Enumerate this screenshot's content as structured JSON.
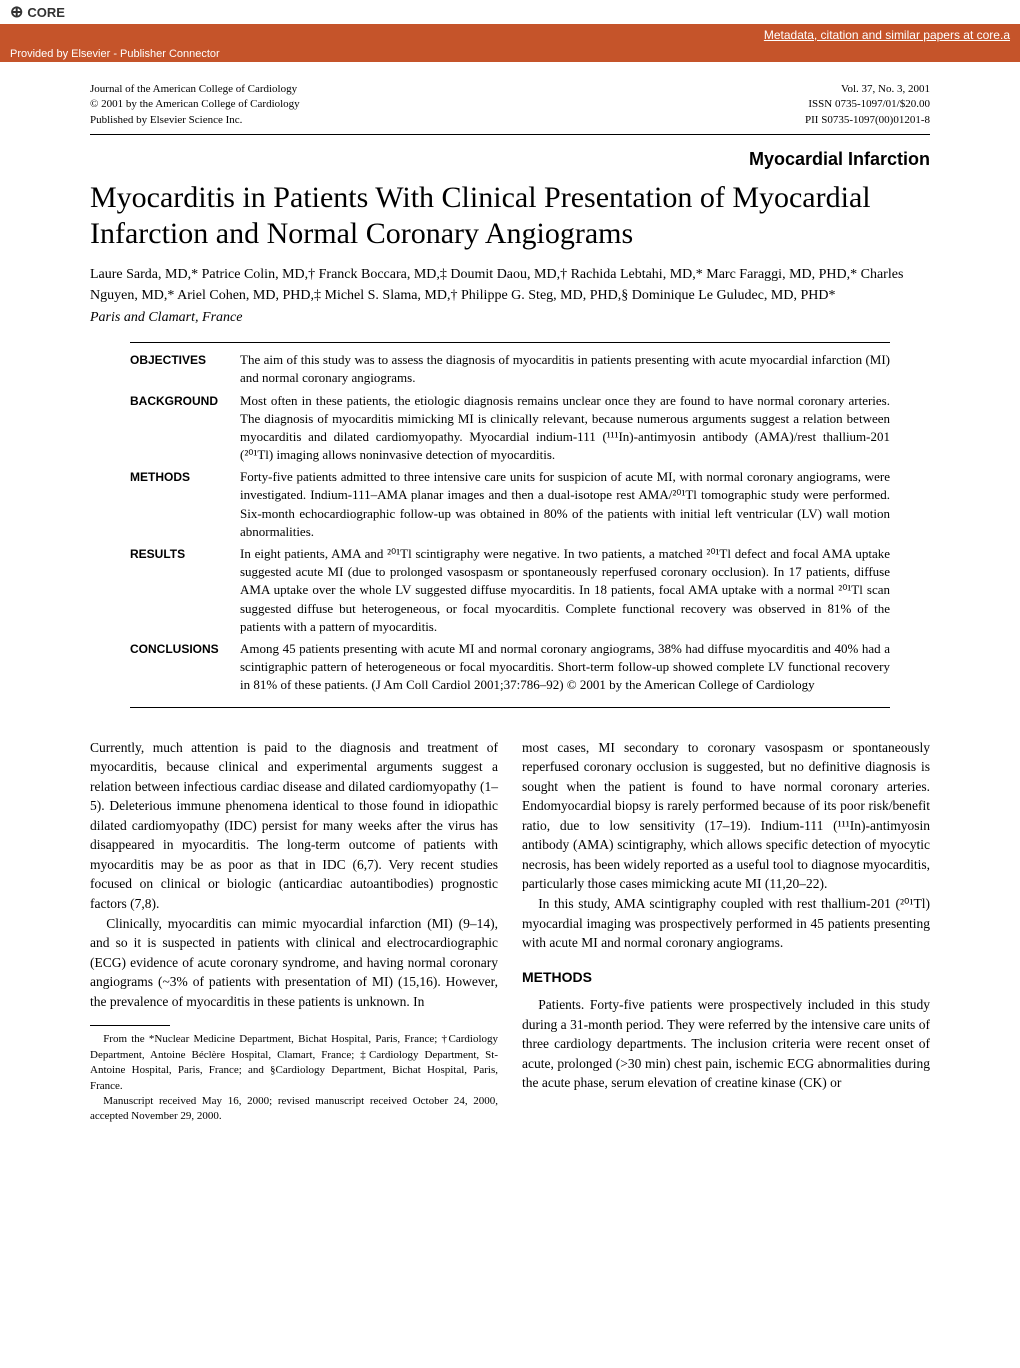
{
  "core": {
    "logo_text": "CORE",
    "link_text": "Metadata, citation and similar papers at core.a",
    "provider_text": "Provided by Elsevier - Publisher Connector"
  },
  "journal_header": {
    "left_line1": "Journal of the American College of Cardiology",
    "left_line2": "© 2001 by the American College of Cardiology",
    "left_line3": "Published by Elsevier Science Inc.",
    "right_line1": "Vol. 37, No. 3, 2001",
    "right_line2": "ISSN 0735-1097/01/$20.00",
    "right_line3": "PII S0735-1097(00)01201-8"
  },
  "section_label": "Myocardial Infarction",
  "title": "Myocarditis in Patients With Clinical Presentation of Myocardial Infarction and Normal Coronary Angiograms",
  "authors": "Laure Sarda, MD,* Patrice Colin, MD,† Franck Boccara, MD,‡ Doumit Daou, MD,† Rachida Lebtahi, MD,* Marc Faraggi, MD, PHD,* Charles Nguyen, MD,* Ariel Cohen, MD, PHD,‡ Michel S. Slama, MD,† Philippe G. Steg, MD, PHD,§ Dominique Le Guludec, MD, PHD*",
  "affiliation": "Paris and Clamart, France",
  "abstract": {
    "objectives": {
      "label": "OBJECTIVES",
      "text": "The aim of this study was to assess the diagnosis of myocarditis in patients presenting with acute myocardial infarction (MI) and normal coronary angiograms."
    },
    "background": {
      "label": "BACKGROUND",
      "text": "Most often in these patients, the etiologic diagnosis remains unclear once they are found to have normal coronary arteries. The diagnosis of myocarditis mimicking MI is clinically relevant, because numerous arguments suggest a relation between myocarditis and dilated cardiomyopathy. Myocardial indium-111 (¹¹¹In)-antimyosin antibody (AMA)/rest thallium-201 (²⁰¹Tl) imaging allows noninvasive detection of myocarditis."
    },
    "methods": {
      "label": "METHODS",
      "text": "Forty-five patients admitted to three intensive care units for suspicion of acute MI, with normal coronary angiograms, were investigated. Indium-111–AMA planar images and then a dual-isotope rest AMA/²⁰¹Tl tomographic study were performed. Six-month echocardiographic follow-up was obtained in 80% of the patients with initial left ventricular (LV) wall motion abnormalities."
    },
    "results": {
      "label": "RESULTS",
      "text": "In eight patients, AMA and ²⁰¹Tl scintigraphy were negative. In two patients, a matched ²⁰¹Tl defect and focal AMA uptake suggested acute MI (due to prolonged vasospasm or spontaneously reperfused coronary occlusion). In 17 patients, diffuse AMA uptake over the whole LV suggested diffuse myocarditis. In 18 patients, focal AMA uptake with a normal ²⁰¹Tl scan suggested diffuse but heterogeneous, or focal myocarditis. Complete functional recovery was observed in 81% of the patients with a pattern of myocarditis."
    },
    "conclusions": {
      "label": "CONCLUSIONS",
      "text": "Among 45 patients presenting with acute MI and normal coronary angiograms, 38% had diffuse myocarditis and 40% had a scintigraphic pattern of heterogeneous or focal myocarditis. Short-term follow-up showed complete LV functional recovery in 81% of these patients. (J Am Coll Cardiol 2001;37:786–92) © 2001 by the American College of Cardiology"
    }
  },
  "body": {
    "left_p1": "Currently, much attention is paid to the diagnosis and treatment of myocarditis, because clinical and experimental arguments suggest a relation between infectious cardiac disease and dilated cardiomyopathy (1–5). Deleterious immune phenomena identical to those found in idiopathic dilated cardiomyopathy (IDC) persist for many weeks after the virus has disappeared in myocarditis. The long-term outcome of patients with myocarditis may be as poor as that in IDC (6,7). Very recent studies focused on clinical or biologic (anticardiac autoantibodies) prognostic factors (7,8).",
    "left_p2": "Clinically, myocarditis can mimic myocardial infarction (MI) (9–14), and so it is suspected in patients with clinical and electrocardiographic (ECG) evidence of acute coronary syndrome, and having normal coronary angiograms (~3% of patients with presentation of MI) (15,16). However, the prevalence of myocarditis in these patients is unknown. In",
    "right_p1": "most cases, MI secondary to coronary vasospasm or spontaneously reperfused coronary occlusion is suggested, but no definitive diagnosis is sought when the patient is found to have normal coronary arteries. Endomyocardial biopsy is rarely performed because of its poor risk/benefit ratio, due to low sensitivity (17–19). Indium-111 (¹¹¹In)-antimyosin antibody (AMA) scintigraphy, which allows specific detection of myocytic necrosis, has been widely reported as a useful tool to diagnose myocarditis, particularly those cases mimicking acute MI (11,20–22).",
    "right_p2": "In this study, AMA scintigraphy coupled with rest thallium-201 (²⁰¹Tl) myocardial imaging was prospectively performed in 45 patients presenting with acute MI and normal coronary angiograms.",
    "methods_heading": "METHODS",
    "methods_p1": "Patients.  Forty-five patients were prospectively included in this study during a 31-month period. They were referred by the intensive care units of three cardiology departments. The inclusion criteria were recent onset of acute, prolonged (>30 min) chest pain, ischemic ECG abnormalities during the acute phase, serum elevation of creatine kinase (CK) or"
  },
  "footnotes": {
    "fn1": "From the *Nuclear Medicine Department, Bichat Hospital, Paris, France; †Cardiology Department, Antoine Béclère Hospital, Clamart, France; ‡Cardiology Department, St-Antoine Hospital, Paris, France; and §Cardiology Department, Bichat Hospital, Paris, France.",
    "fn2": "Manuscript received May 16, 2000; revised manuscript received October 24, 2000, accepted November 29, 2000."
  }
}
